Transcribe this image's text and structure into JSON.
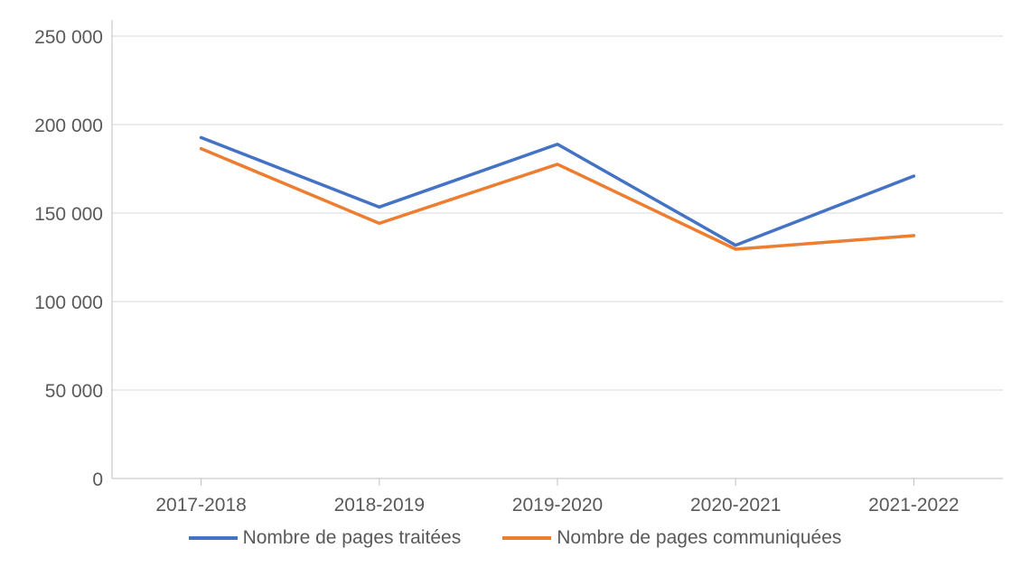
{
  "chart_data": {
    "type": "line",
    "categories": [
      "2017-2018",
      "2018-2019",
      "2019-2020",
      "2020-2021",
      "2021-2022"
    ],
    "series": [
      {
        "name": "Nombre de pages traitées",
        "color": "#4472C4",
        "values": [
          192650,
          153400,
          188900,
          131800,
          170900
        ]
      },
      {
        "name": "Nombre de pages communiquées",
        "color": "#ED7D31",
        "values": [
          186400,
          144200,
          177600,
          129600,
          137250
        ]
      }
    ],
    "ylim": [
      0,
      250000
    ],
    "yticks": [
      0,
      50000,
      100000,
      150000,
      200000,
      250000
    ],
    "ytick_labels": [
      "0",
      "50 000",
      "100 000",
      "150 000",
      "200 000",
      "250 000"
    ],
    "grid": true,
    "legend": "bottom"
  }
}
